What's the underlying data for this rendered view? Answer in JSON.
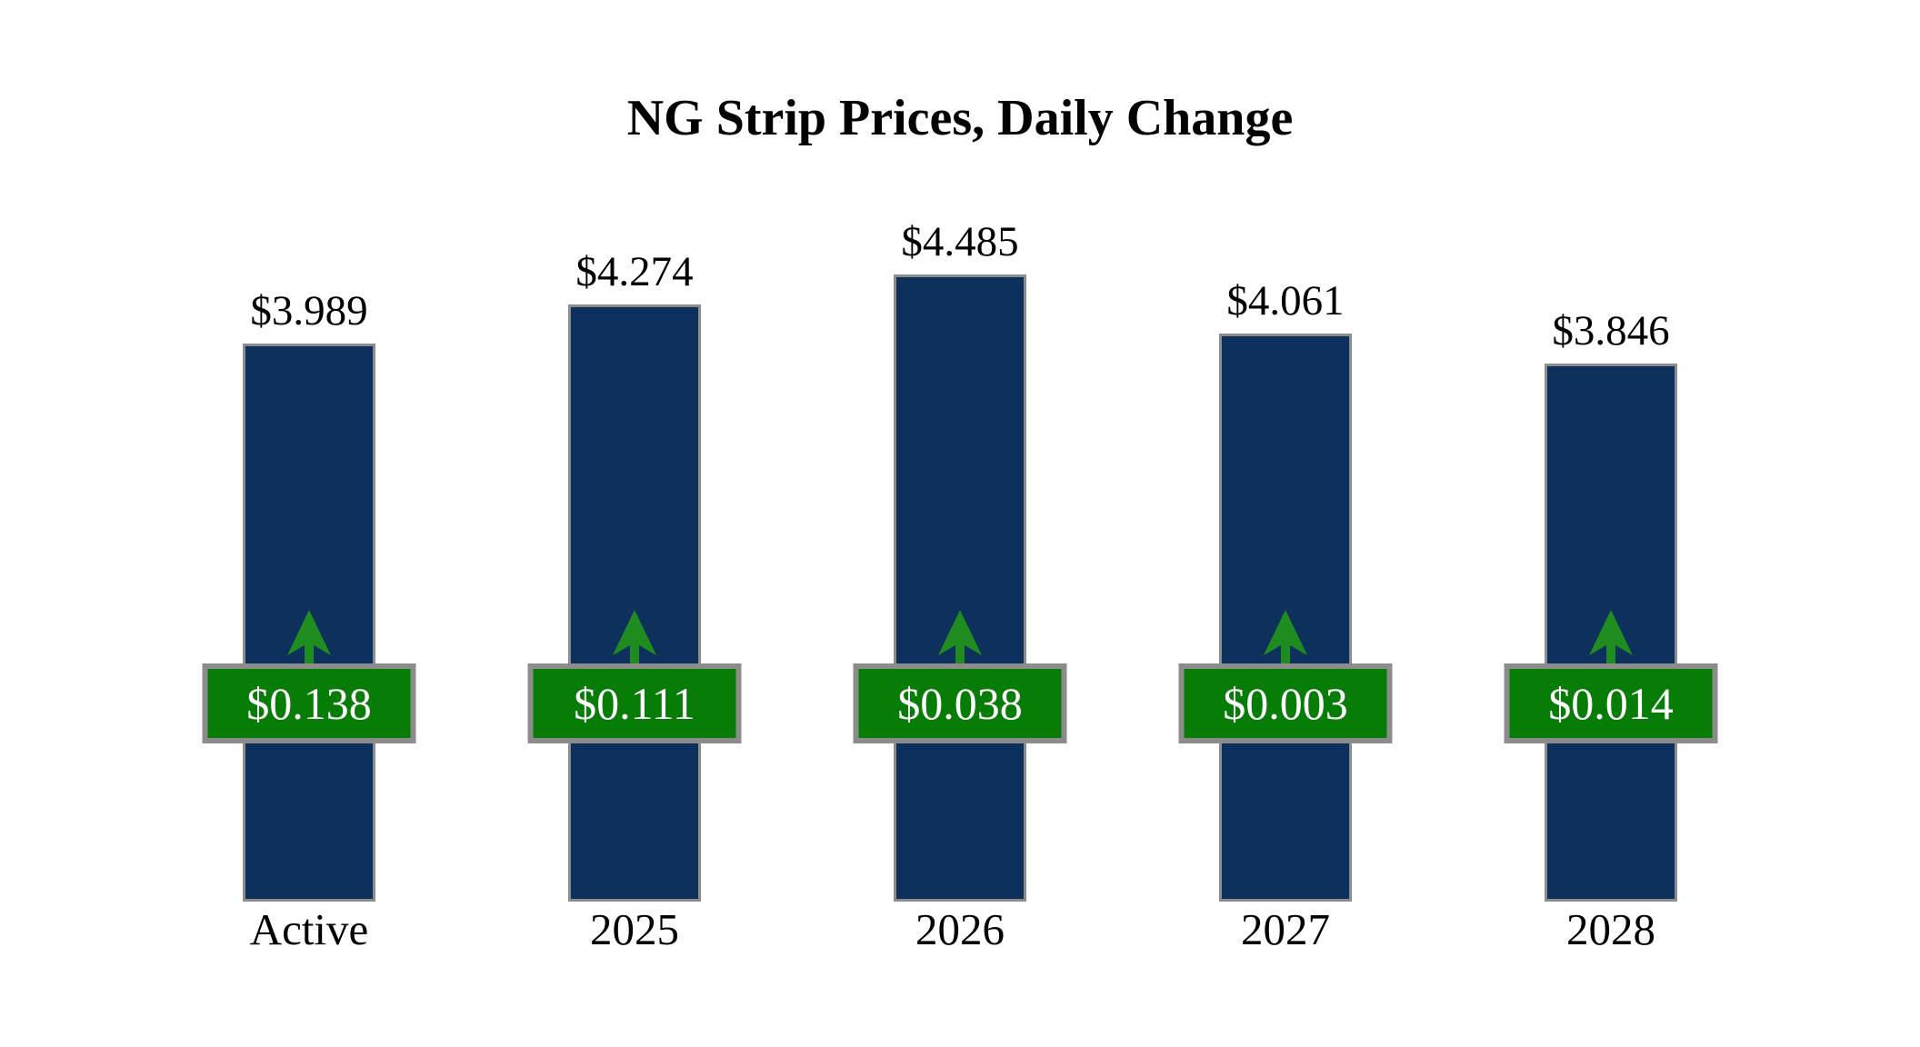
{
  "title": "NG Strip Prices, Daily Change",
  "colors": {
    "bar_fill": "#0d315c",
    "bar_border": "#8c8c8c",
    "badge_fill": "#077d07",
    "badge_border": "#8c8c8c",
    "badge_text": "#ffffff",
    "arrow_green": "#1e8c1e",
    "label_text": "#000000",
    "background": "#ffffff"
  },
  "chart_data": {
    "type": "bar",
    "title": "NG Strip Prices, Daily Change",
    "categories": [
      "Active",
      "2025",
      "2026",
      "2027",
      "2028"
    ],
    "series": [
      {
        "name": "Strip Price",
        "values": [
          3.989,
          4.274,
          4.485,
          4.061,
          3.846
        ],
        "labels": [
          "$3.989",
          "$4.274",
          "$4.485",
          "$4.061",
          "$3.846"
        ]
      },
      {
        "name": "Daily Change",
        "values": [
          0.138,
          0.111,
          0.038,
          0.003,
          0.014
        ],
        "labels": [
          "$0.138",
          "$0.111",
          "$0.038",
          "$0.003",
          "$0.014"
        ],
        "direction": "up"
      }
    ],
    "ylim": [
      0,
      4.485
    ],
    "grid": false,
    "legend": false,
    "axes_shown": false
  }
}
